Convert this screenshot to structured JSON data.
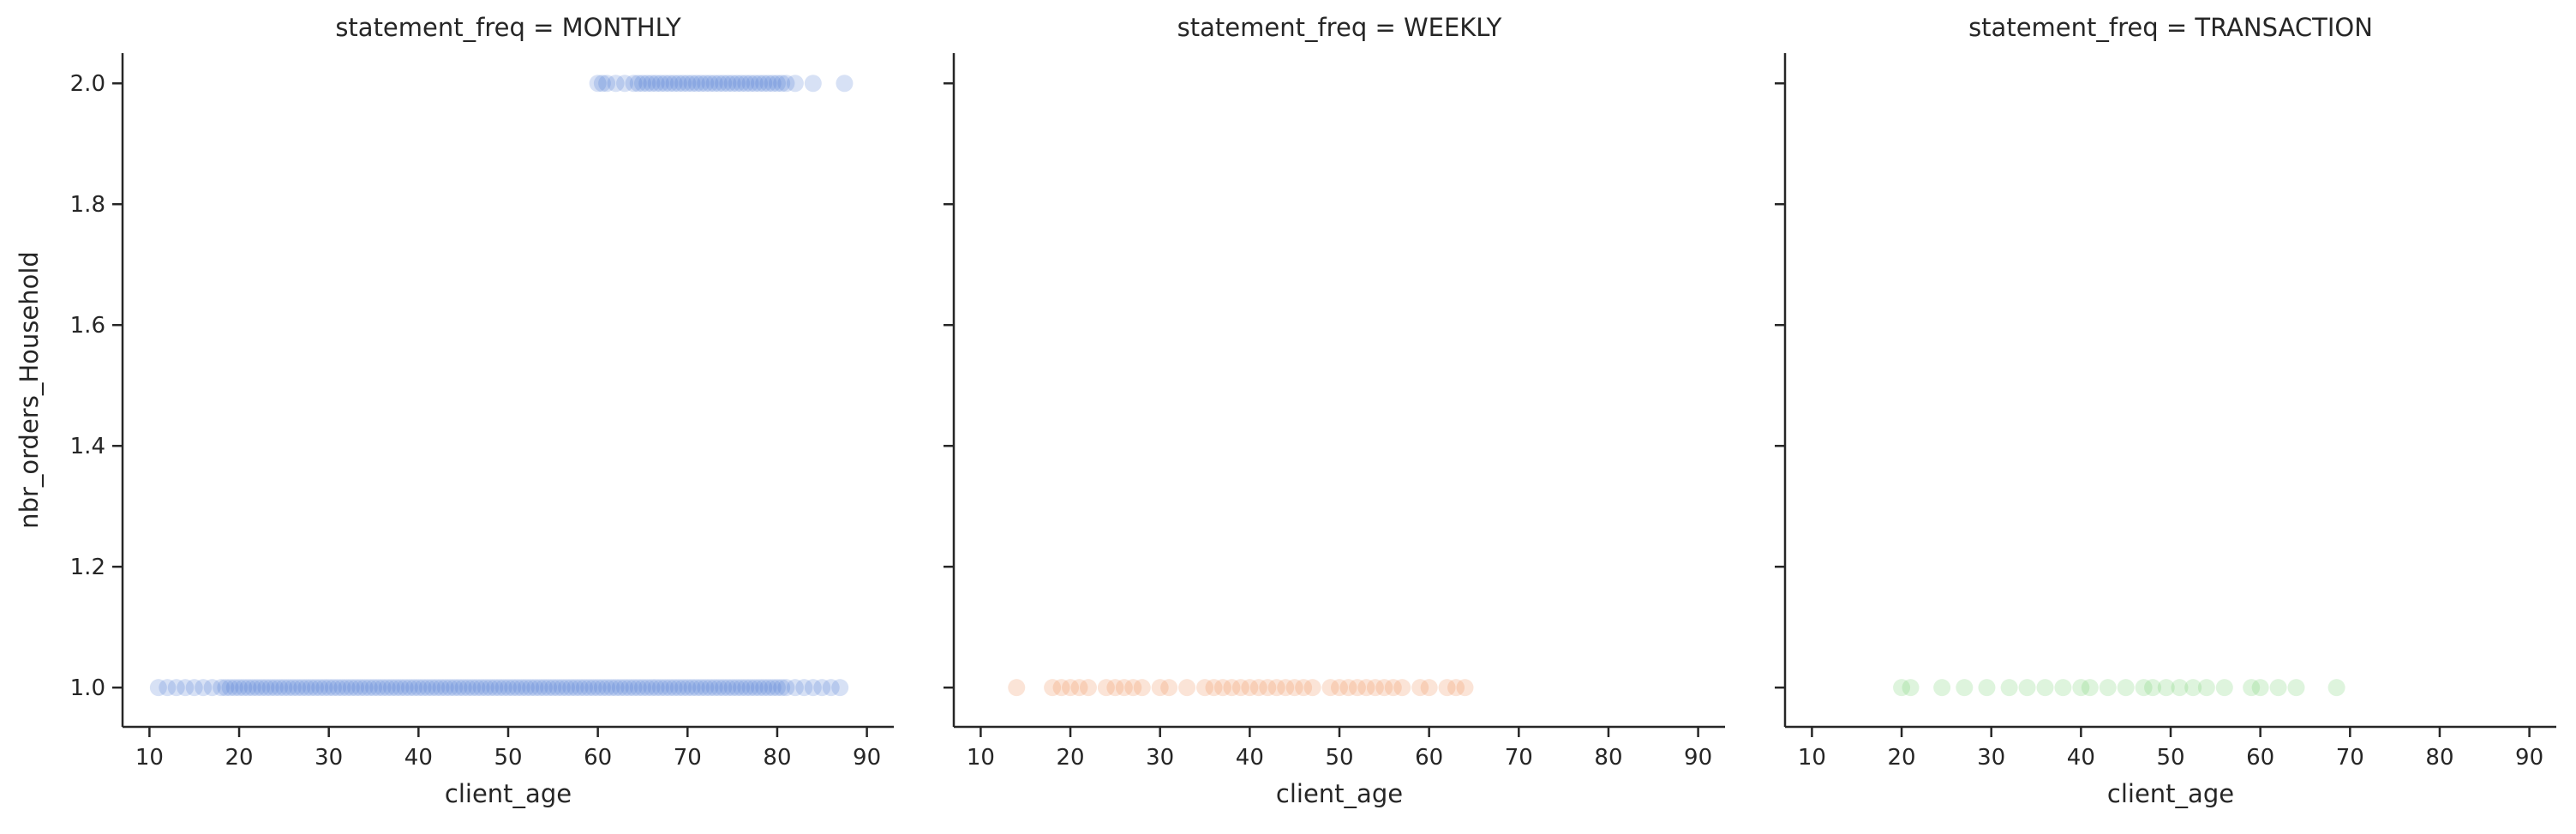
{
  "chart_data": {
    "type": "scatter",
    "layout": "facet-grid",
    "xlabel": "client_age",
    "ylabel": "nbr_orders_Household",
    "xlim": [
      7,
      93
    ],
    "ylim": [
      0.935,
      2.05
    ],
    "xticks": [
      10,
      20,
      30,
      40,
      50,
      60,
      70,
      80,
      90
    ],
    "yticks": [
      1.0,
      1.2,
      1.4,
      1.6,
      1.8,
      2.0
    ],
    "ytick_labels": [
      "1.0",
      "1.2",
      "1.4",
      "1.6",
      "1.8",
      "2.0"
    ],
    "grid": false,
    "sharey": true,
    "panels": [
      {
        "title": "statement_freq = MONTHLY",
        "color": "#4878d0",
        "points": {
          "1.0": [
            11,
            12,
            13,
            14,
            15,
            16,
            17,
            18,
            18.5,
            19,
            19.5,
            20,
            20.5,
            21,
            21.5,
            22,
            22.5,
            23,
            23.5,
            24,
            24.5,
            25,
            25.5,
            26,
            26.5,
            27,
            27.5,
            28,
            28.5,
            29,
            29.5,
            30,
            30.5,
            31,
            31.5,
            32,
            32.5,
            33,
            33.5,
            34,
            34.5,
            35,
            35.5,
            36,
            36.5,
            37,
            37.5,
            38,
            38.5,
            39,
            39.5,
            40,
            40.5,
            41,
            41.5,
            42,
            42.5,
            43,
            43.5,
            44,
            44.5,
            45,
            45.5,
            46,
            46.5,
            47,
            47.5,
            48,
            48.5,
            49,
            49.5,
            50,
            50.5,
            51,
            51.5,
            52,
            52.5,
            53,
            53.5,
            54,
            54.5,
            55,
            55.5,
            56,
            56.5,
            57,
            57.5,
            58,
            58.5,
            59,
            59.5,
            60,
            60.5,
            61,
            61.5,
            62,
            62.5,
            63,
            63.5,
            64,
            64.5,
            65,
            65.5,
            66,
            66.5,
            67,
            67.5,
            68,
            68.5,
            69,
            69.5,
            70,
            70.5,
            71,
            71.5,
            72,
            72.5,
            73,
            73.5,
            74,
            74.5,
            75,
            75.5,
            76,
            76.5,
            77,
            77.5,
            78,
            78.5,
            79,
            79.5,
            80,
            80.5,
            81,
            82,
            83,
            84,
            85,
            86,
            87
          ],
          "2.0": [
            60,
            60.5,
            61,
            62,
            63,
            64,
            64.5,
            65,
            65.5,
            66,
            66.5,
            67,
            67.5,
            68,
            68.5,
            69,
            69.5,
            70,
            70.5,
            71,
            71.5,
            72,
            72.5,
            73,
            73.5,
            74,
            74.5,
            75,
            75.5,
            76,
            76.5,
            77,
            77.5,
            78,
            78.5,
            79,
            79.5,
            80,
            80.5,
            81,
            82,
            84,
            87.5
          ]
        }
      },
      {
        "title": "statement_freq = WEEKLY",
        "color": "#ee854a",
        "points": {
          "1.0": [
            14,
            18,
            19,
            20,
            21,
            22,
            24,
            25,
            26,
            27,
            28,
            30,
            31,
            33,
            35,
            36,
            37,
            38,
            39,
            40,
            41,
            42,
            43,
            44,
            45,
            46,
            47,
            49,
            50,
            51,
            52,
            53,
            54,
            55,
            56,
            57,
            59,
            60,
            62,
            63,
            64
          ]
        }
      },
      {
        "title": "statement_freq = TRANSACTION",
        "color": "#6acc64",
        "points": {
          "1.0": [
            20,
            21,
            24.5,
            27,
            29.5,
            32,
            34,
            36,
            38,
            40,
            41,
            43,
            45,
            47,
            48,
            49.5,
            51,
            52.5,
            54,
            56,
            59,
            60,
            62,
            64,
            68.5
          ]
        }
      }
    ]
  }
}
